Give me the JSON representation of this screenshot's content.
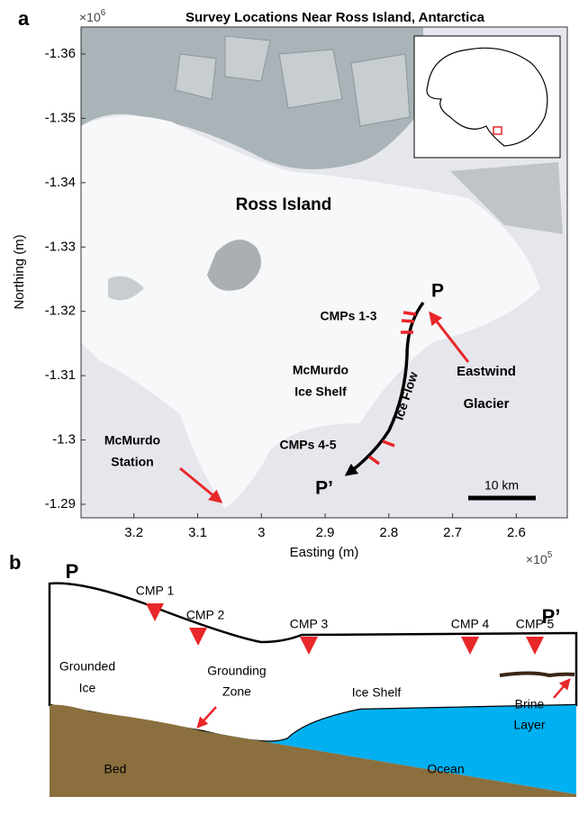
{
  "panel_a": {
    "label": "a",
    "title": "Survey Locations Near Ross Island, Antarctica",
    "y_multiplier": "×10",
    "y_exponent": "6",
    "x_multiplier": "×10",
    "x_exponent": "5",
    "xlabel": "Easting (m)",
    "ylabel": "Northing (m)",
    "xlim": [
      3.283,
      2.52
    ],
    "ylim": [
      -1.2879,
      -1.3642
    ],
    "xticks": [
      3.2,
      3.1,
      3,
      2.9,
      2.8,
      2.7,
      2.6
    ],
    "yticks": [
      -1.36,
      -1.35,
      -1.34,
      -1.33,
      -1.32,
      -1.31,
      -1.3,
      -1.29
    ],
    "labels": {
      "ross_island": "Ross Island",
      "p": "P",
      "p_prime": "P’",
      "cmps_1_3": "CMPs 1-3",
      "ice_shelf": [
        "McMurdo",
        "Ice Shelf"
      ],
      "ice_flow": "Ice Flow",
      "glacier": [
        "Eastwind",
        "Glacier"
      ],
      "cmps_4_5": "CMPs 4-5",
      "station": [
        "McMurdo",
        "Station"
      ],
      "scale": "10 km"
    }
  },
  "panel_b": {
    "label": "b",
    "p": "P",
    "p_prime": "P’",
    "cmps": [
      "CMP 1",
      "CMP 2",
      "CMP 3",
      "CMP 4",
      "CMP 5"
    ],
    "grounded_ice": [
      "Grounded",
      "Ice"
    ],
    "grounding_zone": [
      "Grounding",
      "Zone"
    ],
    "ice_shelf": "Ice Shelf",
    "brine_layer": [
      "Brine",
      "Layer"
    ],
    "bed": "Bed",
    "ocean": "Ocean"
  }
}
